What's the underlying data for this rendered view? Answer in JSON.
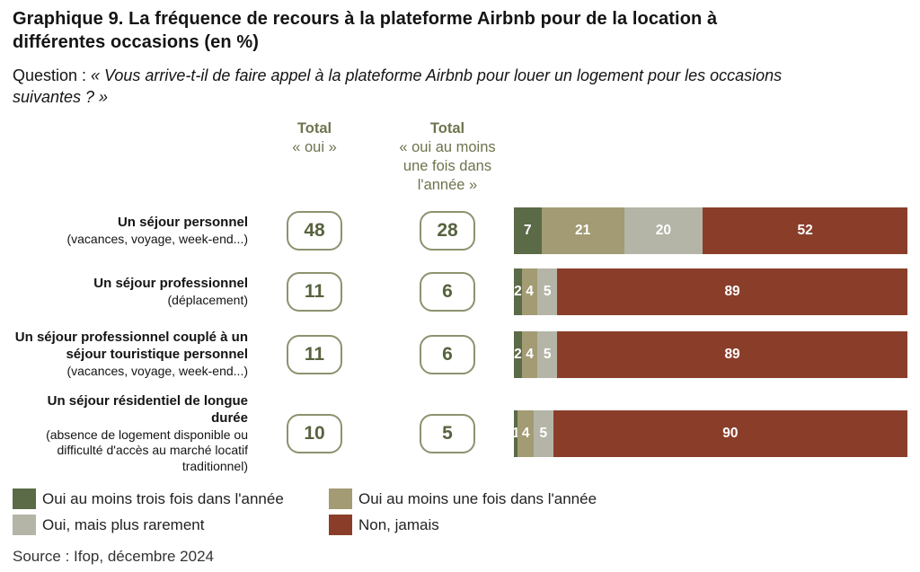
{
  "title": {
    "prefix": "Graphique 9.",
    "text": " La fréquence de recours à la plateforme Airbnb pour de la location à différentes occasions (en %)"
  },
  "question": {
    "prefix": "Question : ",
    "text": "« Vous arrive-t-il de faire appel à la plateforme Airbnb pour louer un logement pour les occasions suivantes ? »"
  },
  "columns": {
    "total_oui": {
      "title": "Total",
      "lines": [
        "« oui »"
      ]
    },
    "total_oui_annual": {
      "title": "Total",
      "lines": [
        "« oui au moins",
        "une fois dans",
        "l'année »"
      ]
    }
  },
  "rows": [
    {
      "label": "Un séjour personnel",
      "sublabel": "(vacances, voyage, week-end...)"
    },
    {
      "label": "Un séjour professionnel",
      "sublabel": "(déplacement)"
    },
    {
      "label": "Un séjour professionnel couplé à un séjour touristique personnel",
      "sublabel": "(vacances, voyage, week-end...)"
    },
    {
      "label": "Un séjour résidentiel de longue durée",
      "sublabel": "(absence de logement disponible ou difficulté d'accès au marché locatif traditionnel)"
    }
  ],
  "chart_data": {
    "type": "bar",
    "orientation": "horizontal",
    "stacked": true,
    "unit": "%",
    "xlim": [
      0,
      100
    ],
    "grid": false,
    "legend_position": "bottom",
    "categories": [
      "Un séjour personnel (vacances, voyage, week-end...)",
      "Un séjour professionnel (déplacement)",
      "Un séjour professionnel couplé à un séjour touristique personnel (vacances, voyage, week-end...)",
      "Un séjour résidentiel de longue durée (absence de logement disponible ou difficulté d'accès au marché locatif traditionnel)"
    ],
    "series": [
      {
        "name": "Oui au moins trois fois dans l'année",
        "color": "#5b6a47",
        "values": [
          7,
          2,
          2,
          1
        ]
      },
      {
        "name": "Oui au moins une fois dans l'année",
        "color": "#a29b73",
        "values": [
          21,
          4,
          4,
          4
        ]
      },
      {
        "name": "Oui, mais plus rarement",
        "color": "#b4b5a7",
        "values": [
          20,
          5,
          5,
          5
        ]
      },
      {
        "name": "Non, jamais",
        "color": "#8a3e2a",
        "values": [
          52,
          89,
          89,
          90
        ]
      }
    ],
    "totals": {
      "total_oui": [
        48,
        11,
        11,
        10
      ],
      "total_oui_annual": [
        28,
        6,
        6,
        5
      ]
    }
  },
  "source": "Source : Ifop, décembre 2024"
}
